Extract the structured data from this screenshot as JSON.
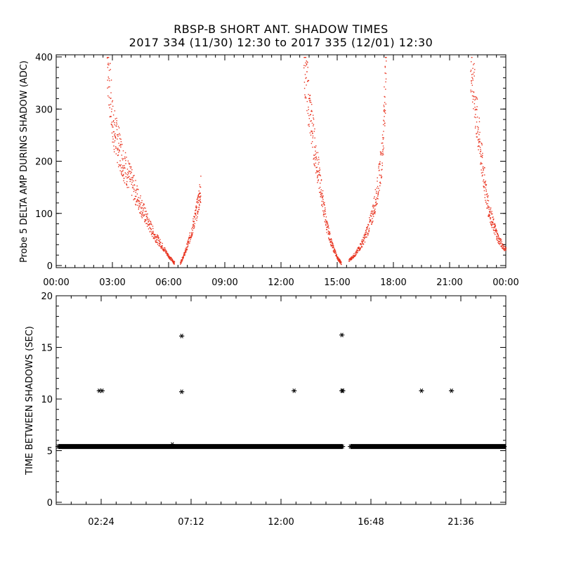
{
  "title_line1": "RBSP-B SHORT ANT. SHADOW TIMES",
  "title_line2": "2017 334 (11/30) 12:30 to 2017 335 (12/01) 12:30",
  "chart_data": [
    {
      "type": "scatter",
      "name": "probe5-delta-amp",
      "ylabel": "Probe 5 DELTA AMP DURING SHADOW (ADC)",
      "xlabel": "",
      "xlim": [
        0,
        24
      ],
      "ylim": [
        0,
        400
      ],
      "xtick_labels": [
        "00:00",
        "03:00",
        "06:00",
        "09:00",
        "12:00",
        "15:00",
        "18:00",
        "21:00",
        "00:00"
      ],
      "xtick_values": [
        0,
        3,
        6,
        9,
        12,
        15,
        18,
        21,
        24
      ],
      "ytick_labels": [
        "0",
        "100",
        "200",
        "300",
        "400"
      ],
      "ytick_values": [
        0,
        100,
        200,
        300,
        400
      ],
      "color": "#e8321e",
      "series": [
        {
          "name": "pass-1-inbound",
          "x": [
            2.7,
            3.0,
            3.3,
            3.6,
            4.0,
            4.4,
            4.8,
            5.2,
            5.6,
            6.0,
            6.3
          ],
          "y": [
            400,
            270,
            230,
            195,
            160,
            125,
            90,
            60,
            40,
            18,
            5
          ]
        },
        {
          "name": "pass-1-outbound",
          "x": [
            6.6,
            6.9,
            7.2,
            7.5,
            7.7
          ],
          "y": [
            5,
            30,
            65,
            110,
            150
          ]
        },
        {
          "name": "pass-2-inbound",
          "x": [
            13.2,
            13.5,
            13.8,
            14.1,
            14.4,
            14.7,
            15.0,
            15.2
          ],
          "y": [
            400,
            300,
            220,
            150,
            80,
            40,
            15,
            5
          ]
        },
        {
          "name": "pass-2-outbound",
          "x": [
            15.6,
            16.0,
            16.4,
            16.8,
            17.1,
            17.4,
            17.6
          ],
          "y": [
            10,
            25,
            50,
            90,
            140,
            220,
            400
          ]
        },
        {
          "name": "pass-3-inbound",
          "x": [
            22.1,
            22.4,
            22.7,
            23.0,
            23.3,
            23.6,
            24.0
          ],
          "y": [
            400,
            290,
            200,
            120,
            80,
            50,
            30
          ]
        }
      ]
    },
    {
      "type": "scatter",
      "name": "time-between-shadows",
      "ylabel": "TIME BETWEEN SHADOWS (SEC)",
      "xlabel": "",
      "xlim": [
        0,
        24
      ],
      "ylim": [
        0,
        20
      ],
      "xtick_labels": [
        "02:24",
        "07:12",
        "12:00",
        "16:48",
        "21:36"
      ],
      "xtick_values": [
        2.4,
        7.2,
        12.0,
        16.8,
        21.6
      ],
      "ytick_labels": [
        "0",
        "5",
        "10",
        "15",
        "20"
      ],
      "ytick_values": [
        0,
        5,
        10,
        15,
        20
      ],
      "marker": "*",
      "baseline_value": 5.4,
      "baseline_segments": [
        [
          0.1,
          15.3
        ],
        [
          15.7,
          24.0
        ]
      ],
      "outliers": [
        {
          "x": 2.3,
          "y": 10.8
        },
        {
          "x": 2.45,
          "y": 10.8
        },
        {
          "x": 6.2,
          "y": 5.6
        },
        {
          "x": 6.7,
          "y": 16.1
        },
        {
          "x": 6.7,
          "y": 10.7
        },
        {
          "x": 12.7,
          "y": 10.8
        },
        {
          "x": 15.25,
          "y": 16.2
        },
        {
          "x": 15.25,
          "y": 10.8
        },
        {
          "x": 15.3,
          "y": 10.8
        },
        {
          "x": 19.5,
          "y": 10.8
        },
        {
          "x": 21.1,
          "y": 10.8
        }
      ]
    }
  ]
}
